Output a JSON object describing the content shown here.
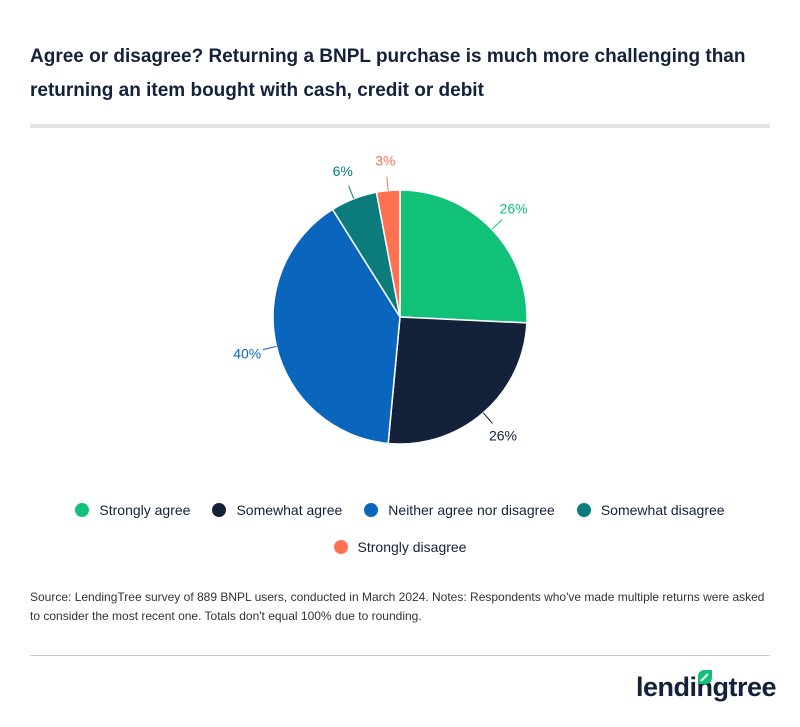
{
  "title": "Agree or disagree? Returning a BNPL purchase is much more challenging than returning an item bought with cash, credit or debit",
  "chart_data": {
    "type": "pie",
    "start": "top, clockwise",
    "categories": [
      "Strongly agree",
      "Somewhat agree",
      "Neither agree nor disagree",
      "Somewhat disagree",
      "Strongly disagree"
    ],
    "values": [
      26,
      26,
      40,
      6,
      3
    ],
    "labels": [
      "26%",
      "26%",
      "40%",
      "6%",
      "3%"
    ],
    "colors": [
      "#10c177",
      "#13213a",
      "#0a66bd",
      "#0b7b7c",
      "#ff7150"
    ],
    "legend_placement": "bottom"
  },
  "source": "Source: LendingTree survey of 889 BNPL users, conducted in March 2024. Notes: Respondents who've made multiple returns were asked to consider the most recent one. Totals don't equal 100% due to rounding.",
  "logo": {
    "text": "lendingtree",
    "icon": "leaf-icon",
    "color": "#10c177"
  }
}
